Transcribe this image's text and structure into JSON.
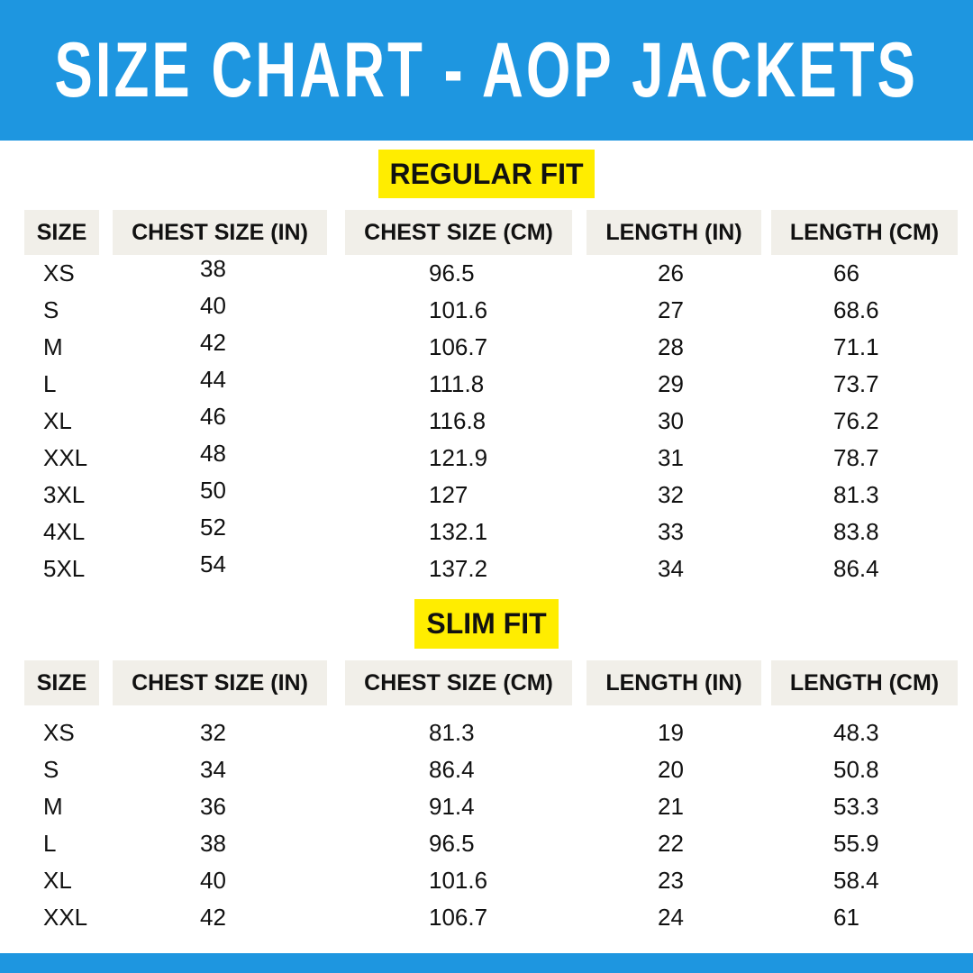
{
  "header": {
    "title": "SIZE CHART - AOP JACKETS"
  },
  "sections": [
    {
      "title": "REGULAR FIT",
      "columns": [
        "SIZE",
        "CHEST SIZE (IN)",
        "CHEST SIZE (CM)",
        "LENGTH (IN)",
        "LENGTH (CM)"
      ],
      "rows": [
        [
          "XS",
          "38",
          "96.5",
          "26",
          "66"
        ],
        [
          "S",
          "40",
          "101.6",
          "27",
          "68.6"
        ],
        [
          "M",
          "42",
          "106.7",
          "28",
          "71.1"
        ],
        [
          "L",
          "44",
          "111.8",
          "29",
          "73.7"
        ],
        [
          "XL",
          "46",
          "116.8",
          "30",
          "76.2"
        ],
        [
          "XXL",
          "48",
          "121.9",
          "31",
          "78.7"
        ],
        [
          "3XL",
          "50",
          "127",
          "32",
          "81.3"
        ],
        [
          "4XL",
          "52",
          "132.1",
          "33",
          "83.8"
        ],
        [
          "5XL",
          "54",
          "137.2",
          "34",
          "86.4"
        ]
      ]
    },
    {
      "title": "SLIM FIT",
      "columns": [
        "SIZE",
        "CHEST SIZE (IN)",
        "CHEST SIZE (CM)",
        "LENGTH (IN)",
        "LENGTH (CM)"
      ],
      "rows": [
        [
          "XS",
          "32",
          "81.3",
          "19",
          "48.3"
        ],
        [
          "S",
          "34",
          "86.4",
          "20",
          "50.8"
        ],
        [
          "M",
          "36",
          "91.4",
          "21",
          "53.3"
        ],
        [
          "L",
          "38",
          "96.5",
          "22",
          "55.9"
        ],
        [
          "XL",
          "40",
          "101.6",
          "23",
          "58.4"
        ],
        [
          "XXL",
          "42",
          "106.7",
          "24",
          "61"
        ]
      ]
    }
  ]
}
